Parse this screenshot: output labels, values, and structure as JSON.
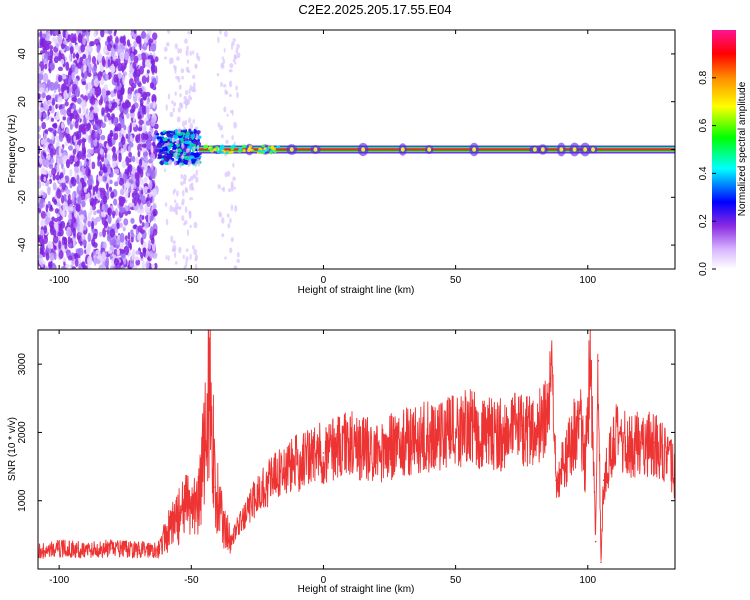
{
  "title": "C2E2.2025.205.17.55.E04",
  "chart_data": [
    {
      "type": "heatmap",
      "xlabel": "Height of straight line (km)",
      "ylabel": "Frequency (Hz)",
      "xlim": [
        -108,
        133
      ],
      "ylim": [
        -50,
        50
      ],
      "x_ticks": [
        -100,
        -50,
        0,
        50,
        100
      ],
      "y_ticks": [
        -40,
        -20,
        0,
        20,
        40
      ],
      "colorbar": {
        "label": "Normalized spectral amplitude",
        "range": [
          0,
          1
        ],
        "ticks": [
          "0.0",
          "0.2",
          "0.4",
          "0.6",
          "0.8"
        ],
        "colors": [
          "#ffffff",
          "#8a2be2",
          "#0000ff",
          "#00ffff",
          "#00ff00",
          "#ffff00",
          "#ff8c00",
          "#ff0000",
          "#ff1493"
        ]
      },
      "regions": [
        {
          "x": [
            -108,
            -63
          ],
          "freq": [
            -50,
            50
          ],
          "pattern": "broadband noise",
          "amplitude": [
            0.1,
            0.3
          ]
        },
        {
          "x": [
            -63,
            -47
          ],
          "freq": [
            -6,
            8
          ],
          "pattern": "clustered energy",
          "amplitude": [
            0.2,
            0.5
          ]
        },
        {
          "x": [
            -60,
            -32
          ],
          "freq": [
            -50,
            50
          ],
          "pattern": "sparse noise",
          "amplitude": [
            0.05,
            0.15
          ]
        },
        {
          "x": [
            -47,
            133
          ],
          "freq": [
            0,
            0
          ],
          "pattern": "narrow carrier line",
          "amplitude": [
            0.9,
            1.0
          ]
        }
      ]
    },
    {
      "type": "line",
      "xlabel": "Height of straight line (km)",
      "ylabel": "SNR (10 * v/v)",
      "xlim": [
        -108,
        133
      ],
      "ylim": [
        0,
        3500
      ],
      "x_ticks": [
        -100,
        -50,
        0,
        50,
        100
      ],
      "y_ticks": [
        1000,
        2000,
        3000
      ],
      "color": "#ee3333",
      "series": [
        {
          "x": [
            -108,
            -100,
            -90,
            -80,
            -70,
            -62,
            -58,
            -52,
            -47,
            -44,
            -43,
            -41,
            -38,
            -35,
            -30,
            -25,
            -20,
            -15,
            -10,
            -5,
            0,
            5,
            10,
            20,
            30,
            40,
            50,
            55,
            60,
            65,
            70,
            75,
            80,
            85,
            86,
            88,
            92,
            95,
            97,
            99,
            101,
            103,
            104,
            105,
            106,
            110,
            115,
            120,
            125,
            130,
            133
          ],
          "y": [
            250,
            300,
            280,
            300,
            280,
            300,
            600,
            900,
            1000,
            2200,
            2900,
            1200,
            650,
            450,
            750,
            1100,
            1300,
            1450,
            1550,
            1650,
            1700,
            1800,
            1850,
            1700,
            1850,
            1950,
            2000,
            2100,
            1950,
            2000,
            1950,
            2100,
            2000,
            2200,
            3000,
            1300,
            1650,
            2000,
            2200,
            1500,
            3050,
            400,
            3050,
            100,
            1300,
            1900,
            1800,
            1850,
            1850,
            1600,
            1400
          ]
        }
      ]
    }
  ]
}
